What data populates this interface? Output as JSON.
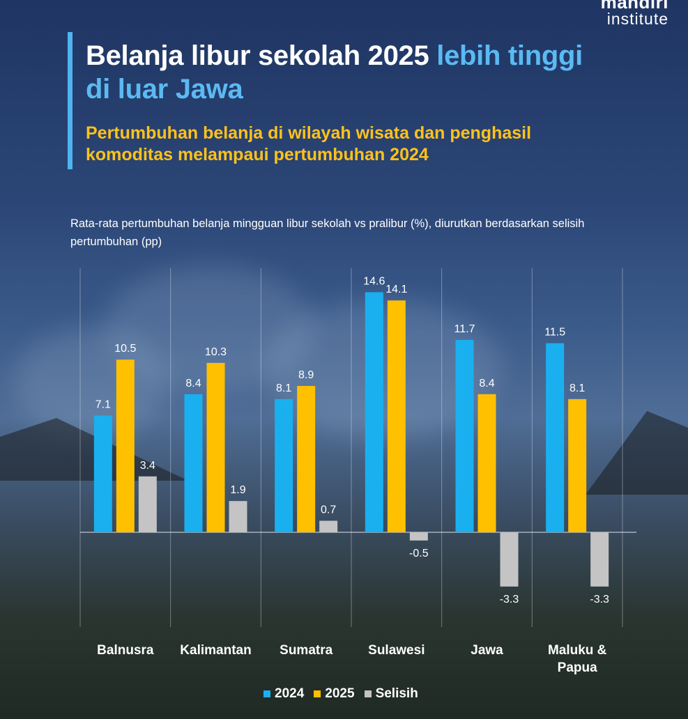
{
  "brand": {
    "line1": "mandiri",
    "line2": "institute"
  },
  "title": {
    "part1": "Belanja libur sekolah 2025 ",
    "highlight1": "lebih tinggi",
    "highlight2": "di luar Jawa"
  },
  "subtitle": "Pertumbuhan belanja di wilayah wisata dan penghasil komoditas melampaui pertumbuhan 2024",
  "description": "Rata-rata pertumbuhan belanja mingguan libur sekolah vs pralibur (%), diurutkan berdasarkan selisih pertumbuhan (pp)",
  "colors": {
    "2024": "#1ab0ef",
    "2025": "#ffc000",
    "Selisih": "#c4c4c4",
    "accent": "#5bbaf2",
    "subtitle": "#ffc21c"
  },
  "chart_data": {
    "type": "bar",
    "categories": [
      "Balnusra",
      "Kalimantan",
      "Sumatra",
      "Sulawesi",
      "Jawa",
      "Maluku & Papua"
    ],
    "series": [
      {
        "name": "2024",
        "values": [
          7.1,
          8.4,
          8.1,
          14.6,
          11.7,
          11.5
        ]
      },
      {
        "name": "2025",
        "values": [
          10.5,
          10.3,
          8.9,
          14.1,
          8.4,
          8.1
        ]
      },
      {
        "name": "Selisih",
        "values": [
          3.4,
          1.9,
          0.7,
          -0.5,
          -3.3,
          -3.3
        ]
      }
    ],
    "grid": true,
    "legend_position": "bottom-center"
  }
}
